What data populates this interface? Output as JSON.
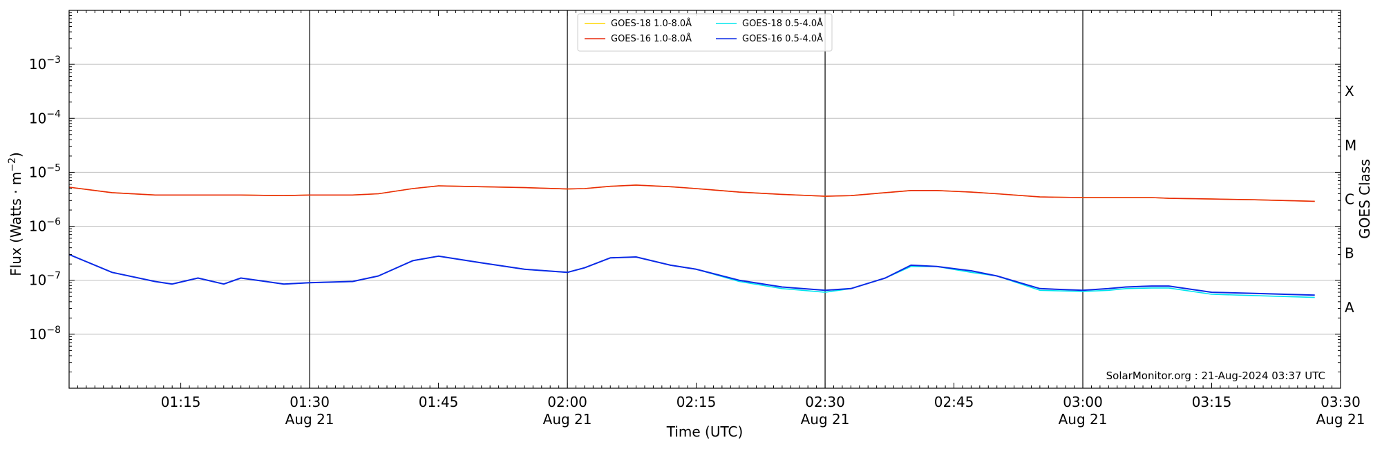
{
  "chart_data": {
    "type": "line",
    "ylabel": "Flux (Watts · m",
    "ylabel_sup": "−2",
    "ylabel_close": ")",
    "xlabel": "Time (UTC)",
    "right_label": "GOES Class",
    "yscale": "log",
    "ylim": [
      1e-09,
      0.01
    ],
    "xlim": [
      "01:02",
      "03:30"
    ],
    "grid": "horizontal at decades",
    "legend_position": "top-center",
    "credit": "SolarMonitor.org : 21-Aug-2024 03:37 UTC",
    "y_ticks": [
      {
        "value": 1e-08,
        "base": "10",
        "exp": "−8"
      },
      {
        "value": 1e-07,
        "base": "10",
        "exp": "−7"
      },
      {
        "value": 1e-06,
        "base": "10",
        "exp": "−6"
      },
      {
        "value": 1e-05,
        "base": "10",
        "exp": "−5"
      },
      {
        "value": 0.0001,
        "base": "10",
        "exp": "−4"
      },
      {
        "value": 0.001,
        "base": "10",
        "exp": "−3"
      }
    ],
    "x_ticks": [
      {
        "time": "01:15",
        "label": "01:15",
        "sub": ""
      },
      {
        "time": "01:30",
        "label": "01:30",
        "sub": "Aug 21"
      },
      {
        "time": "01:45",
        "label": "01:45",
        "sub": ""
      },
      {
        "time": "02:00",
        "label": "02:00",
        "sub": "Aug 21"
      },
      {
        "time": "02:15",
        "label": "02:15",
        "sub": ""
      },
      {
        "time": "02:30",
        "label": "02:30",
        "sub": "Aug 21"
      },
      {
        "time": "02:45",
        "label": "02:45",
        "sub": ""
      },
      {
        "time": "03:00",
        "label": "03:00",
        "sub": "Aug 21"
      },
      {
        "time": "03:15",
        "label": "03:15",
        "sub": ""
      },
      {
        "time": "03:30",
        "label": "03:30",
        "sub": "Aug 21"
      }
    ],
    "vertical_lines": [
      "01:30",
      "02:00",
      "02:30",
      "03:00"
    ],
    "goes_classes": [
      {
        "label": "A",
        "value": 3.16e-08
      },
      {
        "label": "B",
        "value": 3.16e-07
      },
      {
        "label": "C",
        "value": 3.16e-06
      },
      {
        "label": "M",
        "value": 3.16e-05
      },
      {
        "label": "X",
        "value": 0.000316
      }
    ],
    "x": [
      "01:02",
      "01:07",
      "01:12",
      "01:14",
      "01:17",
      "01:20",
      "01:22",
      "01:27",
      "01:30",
      "01:35",
      "01:38",
      "01:42",
      "01:45",
      "01:50",
      "01:55",
      "02:00",
      "02:02",
      "02:05",
      "02:08",
      "02:12",
      "02:15",
      "02:20",
      "02:25",
      "02:30",
      "02:33",
      "02:37",
      "02:40",
      "02:43",
      "02:47",
      "02:50",
      "02:55",
      "03:00",
      "03:03",
      "03:05",
      "03:08",
      "03:10",
      "03:15",
      "03:20",
      "03:27"
    ],
    "series": [
      {
        "name": "GOES-18 1.0-8.0Å",
        "color": "#ffd700",
        "values": [
          5.3e-06,
          4.2e-06,
          3.8e-06,
          3.8e-06,
          3.8e-06,
          3.8e-06,
          3.8e-06,
          3.7e-06,
          3.8e-06,
          3.8e-06,
          4e-06,
          5e-06,
          5.6e-06,
          5.4e-06,
          5.2e-06,
          4.9e-06,
          5e-06,
          5.5e-06,
          5.8e-06,
          5.4e-06,
          5e-06,
          4.3e-06,
          3.9e-06,
          3.6e-06,
          3.7e-06,
          4.2e-06,
          4.6e-06,
          4.6e-06,
          4.3e-06,
          4e-06,
          3.5e-06,
          3.4e-06,
          3.4e-06,
          3.4e-06,
          3.4e-06,
          3.3e-06,
          3.2e-06,
          3.1e-06,
          2.9e-06
        ]
      },
      {
        "name": "GOES-16 1.0-8.0Å",
        "color": "#e8280c",
        "values": [
          5.3e-06,
          4.2e-06,
          3.8e-06,
          3.8e-06,
          3.8e-06,
          3.8e-06,
          3.8e-06,
          3.7e-06,
          3.8e-06,
          3.8e-06,
          4e-06,
          5e-06,
          5.6e-06,
          5.4e-06,
          5.2e-06,
          4.9e-06,
          5e-06,
          5.5e-06,
          5.8e-06,
          5.4e-06,
          5e-06,
          4.3e-06,
          3.9e-06,
          3.6e-06,
          3.7e-06,
          4.2e-06,
          4.6e-06,
          4.6e-06,
          4.3e-06,
          4e-06,
          3.5e-06,
          3.4e-06,
          3.4e-06,
          3.4e-06,
          3.4e-06,
          3.3e-06,
          3.2e-06,
          3.1e-06,
          2.9e-06
        ]
      },
      {
        "name": "GOES-18 0.5-4.0Å",
        "color": "#00e5ee",
        "values": [
          3e-07,
          1.4e-07,
          9.5e-08,
          8.5e-08,
          1.1e-07,
          8.5e-08,
          1.1e-07,
          8.5e-08,
          9e-08,
          9.5e-08,
          1.2e-07,
          2.3e-07,
          2.8e-07,
          2.1e-07,
          1.6e-07,
          1.4e-07,
          1.7e-07,
          2.6e-07,
          2.7e-07,
          1.9e-07,
          1.6e-07,
          9.5e-08,
          7e-08,
          6e-08,
          7e-08,
          1.1e-07,
          1.8e-07,
          1.8e-07,
          1.4e-07,
          1.2e-07,
          6.5e-08,
          6.2e-08,
          6.5e-08,
          7e-08,
          7.2e-08,
          7.2e-08,
          5.5e-08,
          5.2e-08,
          4.8e-08
        ]
      },
      {
        "name": "GOES-16 0.5-4.0Å",
        "color": "#0a28e6",
        "values": [
          3e-07,
          1.4e-07,
          9.5e-08,
          8.5e-08,
          1.1e-07,
          8.5e-08,
          1.1e-07,
          8.5e-08,
          9e-08,
          9.5e-08,
          1.2e-07,
          2.3e-07,
          2.8e-07,
          2.1e-07,
          1.6e-07,
          1.4e-07,
          1.7e-07,
          2.6e-07,
          2.7e-07,
          1.9e-07,
          1.6e-07,
          1e-07,
          7.5e-08,
          6.5e-08,
          7e-08,
          1.1e-07,
          1.9e-07,
          1.8e-07,
          1.5e-07,
          1.2e-07,
          7e-08,
          6.5e-08,
          7e-08,
          7.5e-08,
          7.8e-08,
          7.8e-08,
          6e-08,
          5.7e-08,
          5.3e-08
        ]
      }
    ]
  }
}
